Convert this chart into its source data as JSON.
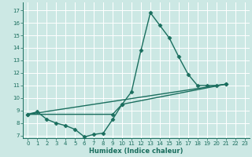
{
  "xlabel": "Humidex (Indice chaleur)",
  "bg_color": "#cce8e4",
  "grid_color": "#ffffff",
  "line_color": "#1a6e5e",
  "xlim": [
    -0.5,
    23.5
  ],
  "ylim": [
    6.8,
    17.6
  ],
  "yticks": [
    7,
    8,
    9,
    10,
    11,
    12,
    13,
    14,
    15,
    16,
    17
  ],
  "xticks": [
    0,
    1,
    2,
    3,
    4,
    5,
    6,
    7,
    8,
    9,
    10,
    11,
    12,
    13,
    14,
    15,
    16,
    17,
    18,
    19,
    20,
    21,
    22,
    23
  ],
  "line1_x": [
    0,
    1,
    2,
    3,
    4,
    5,
    6,
    7,
    8,
    9,
    10,
    11,
    12,
    13,
    14,
    15,
    16,
    17,
    18,
    19,
    20,
    21
  ],
  "line1_y": [
    8.7,
    8.9,
    8.3,
    8.0,
    7.8,
    7.5,
    6.9,
    7.1,
    7.2,
    8.3,
    9.5,
    10.5,
    13.8,
    16.8,
    15.8,
    14.8,
    13.3,
    11.9,
    11.0,
    11.0,
    11.0,
    11.1
  ],
  "line2_x": [
    0,
    9,
    10,
    21
  ],
  "line2_y": [
    8.7,
    8.7,
    9.5,
    11.1
  ],
  "line3_x": [
    0,
    21
  ],
  "line3_y": [
    8.7,
    11.1
  ],
  "marker": "D",
  "markersize": 2.5,
  "linewidth": 1.0,
  "tick_fontsize": 5.0,
  "xlabel_fontsize": 6.0
}
